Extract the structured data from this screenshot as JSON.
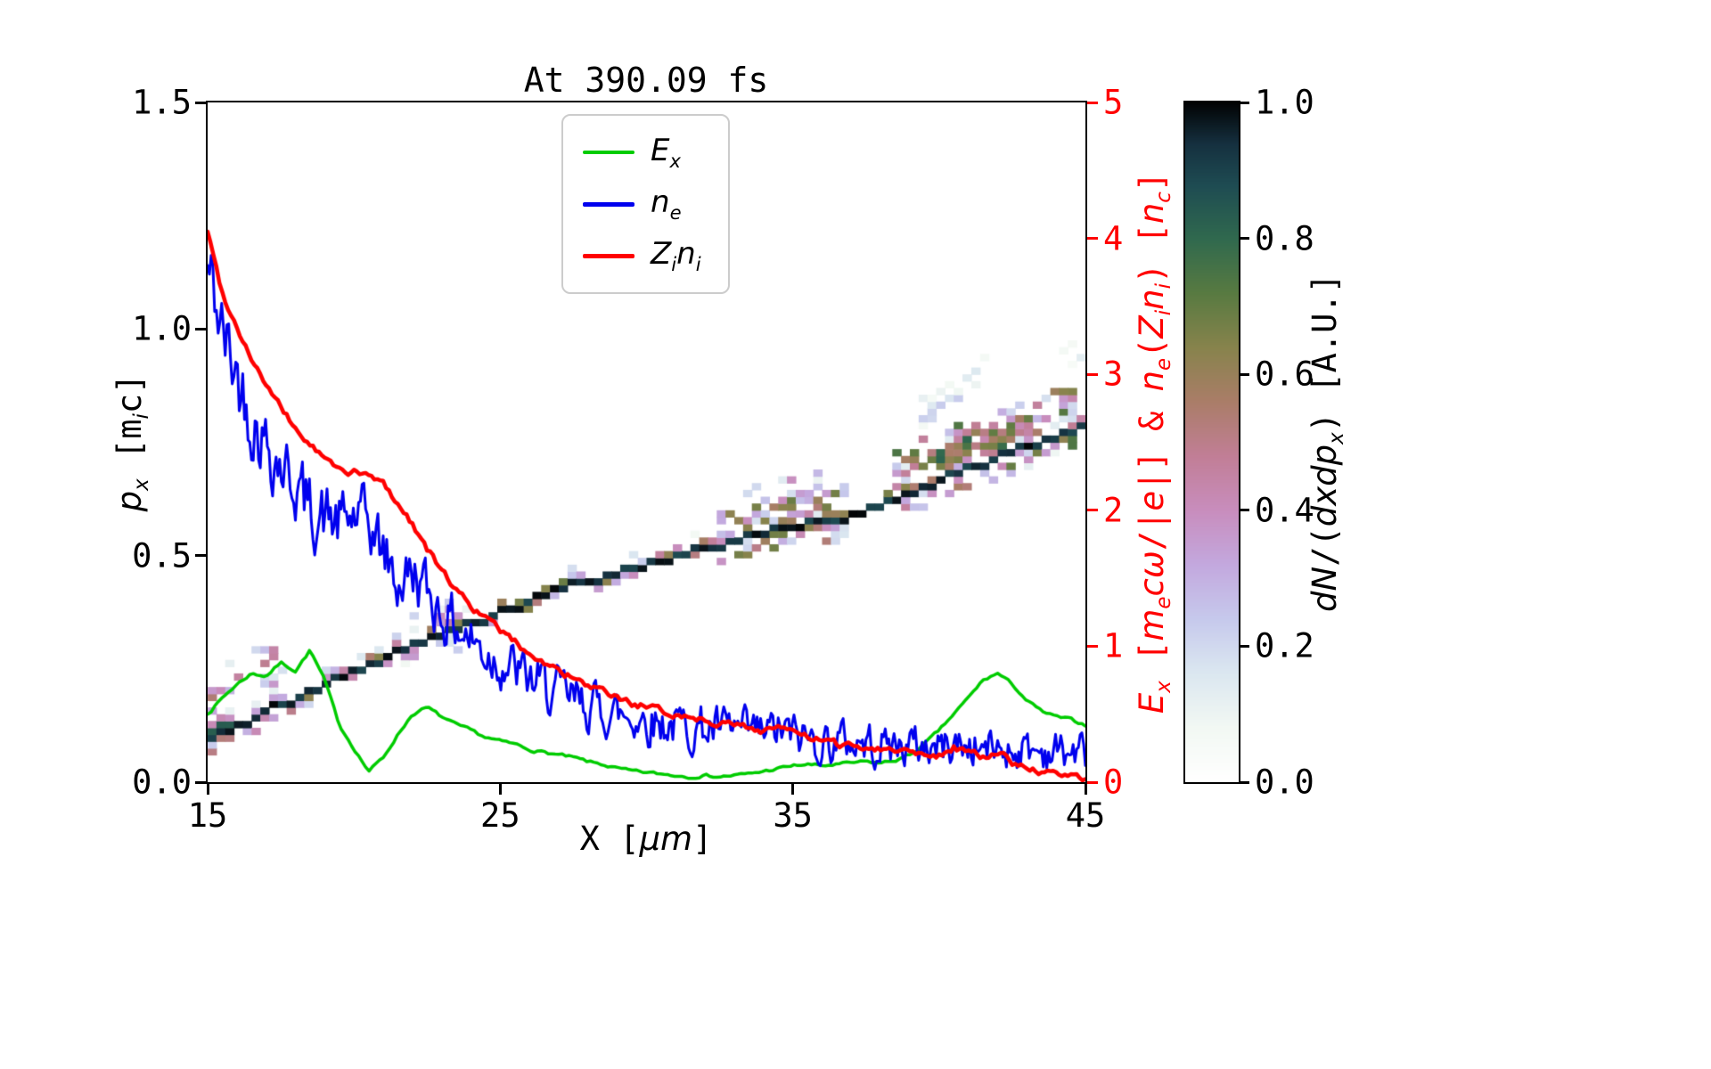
{
  "title": "At 390.09 fs",
  "chart_data": {
    "type": "line+heatmap",
    "title": "At 390.09 fs",
    "grid": false,
    "x_axis": {
      "range": [
        15,
        45
      ],
      "label_segments": [
        {
          "t": "X ["
        },
        {
          "t": "μm",
          "it": 1
        },
        {
          "t": "]"
        }
      ],
      "ticks": [
        {
          "v": 15,
          "label": "15"
        },
        {
          "v": 25,
          "label": "25"
        },
        {
          "v": 35,
          "label": "35"
        },
        {
          "v": 45,
          "label": "45"
        }
      ]
    },
    "y_left": {
      "range": [
        0,
        1.5
      ],
      "label_segments": [
        {
          "t": "p",
          "it": 1
        },
        {
          "t": "x",
          "it": 1,
          "sub": 1
        },
        {
          "t": " [m"
        },
        {
          "t": "i",
          "it": 1,
          "sub": 1
        },
        {
          "t": "c]"
        }
      ],
      "ticks": [
        {
          "v": 0,
          "label": "0.0"
        },
        {
          "v": 0.5,
          "label": "0.5"
        },
        {
          "v": 1.0,
          "label": "1.0"
        },
        {
          "v": 1.5,
          "label": "1.5"
        }
      ]
    },
    "y_right": {
      "range": [
        0,
        5
      ],
      "color": "#ff0000",
      "label_segments": [
        {
          "t": "E",
          "it": 1
        },
        {
          "t": "x",
          "it": 1,
          "sub": 1
        },
        {
          "t": " ["
        },
        {
          "t": "m",
          "it": 1
        },
        {
          "t": "e",
          "it": 1,
          "sub": 1
        },
        {
          "t": "c",
          "it": 1
        },
        {
          "t": "ω",
          "it": 1
        },
        {
          "t": "/|"
        },
        {
          "t": "e",
          "it": 1
        },
        {
          "t": "|] & "
        },
        {
          "t": "n",
          "it": 1
        },
        {
          "t": "e",
          "it": 1,
          "sub": 1
        },
        {
          "t": "("
        },
        {
          "t": "Z",
          "it": 1
        },
        {
          "t": "i",
          "it": 1,
          "sub": 1
        },
        {
          "t": "n",
          "it": 1
        },
        {
          "t": "i",
          "it": 1,
          "sub": 1
        },
        {
          "t": ") ["
        },
        {
          "t": "n",
          "it": 1
        },
        {
          "t": "c",
          "it": 1,
          "sub": 1
        },
        {
          "t": "]"
        }
      ],
      "ticks": [
        {
          "v": 0,
          "label": "0"
        },
        {
          "v": 1,
          "label": "1"
        },
        {
          "v": 2,
          "label": "2"
        },
        {
          "v": 3,
          "label": "3"
        },
        {
          "v": 4,
          "label": "4"
        },
        {
          "v": 5,
          "label": "5"
        }
      ]
    },
    "legend": {
      "position": "upper center",
      "entries": [
        {
          "name": "Ex",
          "color": "#00cc00",
          "lw": 4,
          "label_segments": [
            {
              "t": "E",
              "it": 1
            },
            {
              "t": "x",
              "it": 1,
              "sub": 1
            }
          ]
        },
        {
          "name": "ne",
          "color": "#0000ee",
          "lw": 5,
          "label_segments": [
            {
              "t": "n",
              "it": 1
            },
            {
              "t": "e",
              "it": 1,
              "sub": 1
            }
          ]
        },
        {
          "name": "Zini",
          "color": "#ff0000",
          "lw": 5,
          "label_segments": [
            {
              "t": "Z",
              "it": 1
            },
            {
              "t": "i",
              "it": 1,
              "sub": 1
            },
            {
              "t": "n",
              "it": 1
            },
            {
              "t": "i",
              "it": 1,
              "sub": 1
            }
          ]
        }
      ]
    },
    "series": [
      {
        "name": "Ex",
        "axis": "right",
        "color": "#00cc00",
        "lw": 3.5,
        "x_start": 15,
        "x_step": 0.5,
        "y": [
          0.5,
          0.62,
          0.72,
          0.8,
          0.78,
          0.88,
          0.82,
          0.97,
          0.75,
          0.42,
          0.25,
          0.08,
          0.18,
          0.35,
          0.5,
          0.55,
          0.48,
          0.42,
          0.38,
          0.33,
          0.3,
          0.28,
          0.24,
          0.22,
          0.2,
          0.18,
          0.15,
          0.13,
          0.1,
          0.08,
          0.07,
          0.06,
          0.05,
          0.04,
          0.05,
          0.04,
          0.05,
          0.06,
          0.08,
          0.1,
          0.12,
          0.13,
          0.12,
          0.13,
          0.14,
          0.15,
          0.14,
          0.16,
          0.2,
          0.28,
          0.38,
          0.5,
          0.62,
          0.75,
          0.8,
          0.72,
          0.6,
          0.52,
          0.48,
          0.46,
          0.42
        ],
        "noise": {
          "step": 0.12,
          "ar": 0.5,
          "amp": 0.013,
          "mult": 1.5,
          "seed": 7
        }
      },
      {
        "name": "ne",
        "axis": "right",
        "color": "#0000ee",
        "lw": 3,
        "x_start": 15,
        "x_step": 0.5,
        "y": [
          3.8,
          3.3,
          3.0,
          2.7,
          2.5,
          2.35,
          2.2,
          2.0,
          1.95,
          1.9,
          1.95,
          1.9,
          1.7,
          1.45,
          1.55,
          1.4,
          1.25,
          1.15,
          1.05,
          0.95,
          0.9,
          0.82,
          0.75,
          0.7,
          0.65,
          0.6,
          0.57,
          0.54,
          0.5,
          0.48,
          0.46,
          0.44,
          0.42,
          0.4,
          0.4,
          0.38,
          0.38,
          0.36,
          0.36,
          0.38,
          0.35,
          0.32,
          0.3,
          0.3,
          0.3,
          0.28,
          0.28,
          0.27,
          0.27,
          0.26,
          0.26,
          0.28,
          0.26,
          0.25,
          0.25,
          0.24,
          0.24,
          0.23,
          0.23,
          0.22,
          0.22
        ],
        "noise": {
          "step": 0.06,
          "ar": 0.45,
          "amp_start": 0.3,
          "amp_end": 0.13,
          "decay": 9,
          "mult": 1.7,
          "seed": 42
        }
      },
      {
        "name": "Zini",
        "axis": "right",
        "color": "#ff0000",
        "lw": 4.5,
        "x_start": 15,
        "x_step": 0.5,
        "y": [
          4.05,
          3.6,
          3.35,
          3.12,
          2.92,
          2.75,
          2.6,
          2.48,
          2.38,
          2.3,
          2.28,
          2.25,
          2.2,
          2.05,
          1.9,
          1.72,
          1.55,
          1.42,
          1.3,
          1.2,
          1.12,
          1.03,
          0.95,
          0.88,
          0.82,
          0.76,
          0.7,
          0.66,
          0.62,
          0.58,
          0.55,
          0.52,
          0.5,
          0.48,
          0.46,
          0.44,
          0.42,
          0.4,
          0.38,
          0.42,
          0.36,
          0.33,
          0.3,
          0.28,
          0.27,
          0.26,
          0.25,
          0.24,
          0.23,
          0.22,
          0.2,
          0.26,
          0.22,
          0.18,
          0.22,
          0.15,
          0.1,
          0.07,
          0.05,
          0.04,
          0.03
        ],
        "noise": {
          "step": 0.1,
          "ar": 0.5,
          "amp": 0.03,
          "mult": 1.5,
          "seed": 99
        }
      }
    ],
    "heatmap": {
      "name": "ion phase space dN/(dxdpx)",
      "x_range": [
        15,
        45
      ],
      "p_range": [
        0,
        1.5
      ],
      "grid": {
        "nx": 100,
        "np": 100
      },
      "seed": 1337,
      "band_centerline": {
        "x": [
          15,
          17,
          19,
          21,
          23,
          25,
          27,
          29,
          31,
          33,
          35,
          36.5,
          38,
          40,
          42,
          44,
          45
        ],
        "p": [
          0.1,
          0.155,
          0.215,
          0.27,
          0.325,
          0.375,
          0.425,
          0.465,
          0.5,
          0.535,
          0.565,
          0.578,
          0.615,
          0.665,
          0.715,
          0.762,
          0.785
        ]
      },
      "band_core_intensity": [
        0.88,
        1.0
      ],
      "patches": [
        {
          "x0": 15.0,
          "x1": 17.8,
          "rel": 1,
          "p0": -0.03,
          "p1": 0.13,
          "density": 0.3,
          "i0": 0.1,
          "i1": 0.55
        },
        {
          "x0": 21.8,
          "x1": 23.6,
          "rel": 1,
          "p0": -0.045,
          "p1": 0.05,
          "density": 0.25,
          "i0": 0.08,
          "i1": 0.4
        },
        {
          "x0": 32.5,
          "x1": 36.8,
          "rel": 1,
          "p0": -0.04,
          "p1": 0.05,
          "density": 0.45,
          "i0": 0.15,
          "i1": 0.7
        },
        {
          "x0": 33.2,
          "x1": 36.2,
          "rel": 1,
          "p0": 0.025,
          "p1": 0.09,
          "density": 0.25,
          "i0": 0.08,
          "i1": 0.4
        },
        {
          "x0": 38.3,
          "x1": 44.6,
          "rel": 1,
          "p0": -0.04,
          "p1": 0.085,
          "density": 0.4,
          "i0": 0.12,
          "i1": 0.75
        },
        {
          "x0": 40.0,
          "x1": 43.2,
          "rel": 1,
          "p0": 0.03,
          "p1": 0.055,
          "density": 0.7,
          "i0": 0.35,
          "i1": 0.85
        },
        {
          "x0": 39.3,
          "x1": 41.6,
          "rel": 0,
          "diag": 1,
          "p0": 0.8,
          "p1": 0.91,
          "density": 0.35,
          "i0": 0.06,
          "i1": 0.25
        },
        {
          "x0": 44.0,
          "x1": 45.0,
          "rel": 0,
          "p0": 0.9,
          "p1": 0.96,
          "density": 0.25,
          "i0": 0.05,
          "i1": 0.16
        }
      ]
    },
    "colorbar": {
      "range": [
        0,
        1
      ],
      "label_segments": [
        {
          "t": "d",
          "it": 1
        },
        {
          "t": "N",
          "it": 1
        },
        {
          "t": "/("
        },
        {
          "t": "d",
          "it": 1
        },
        {
          "t": "x",
          "it": 1
        },
        {
          "t": "d",
          "it": 1
        },
        {
          "t": "p",
          "it": 1
        },
        {
          "t": "x",
          "it": 1,
          "sub": 1
        },
        {
          "t": ") [A.U.]"
        }
      ],
      "ticks": [
        {
          "v": 0,
          "label": "0.0"
        },
        {
          "v": 0.2,
          "label": "0.2"
        },
        {
          "v": 0.4,
          "label": "0.4"
        },
        {
          "v": 0.6,
          "label": "0.6"
        },
        {
          "v": 0.8,
          "label": "0.8"
        },
        {
          "v": 1.0,
          "label": "1.0"
        }
      ],
      "colormap_stops": [
        {
          "v": 0.0,
          "c": "#ffffff"
        },
        {
          "v": 0.08,
          "c": "#f2f8f3"
        },
        {
          "v": 0.16,
          "c": "#dbe7f0"
        },
        {
          "v": 0.24,
          "c": "#c6c9ec"
        },
        {
          "v": 0.32,
          "c": "#c3a8de"
        },
        {
          "v": 0.4,
          "c": "#c88dbd"
        },
        {
          "v": 0.48,
          "c": "#c17e96"
        },
        {
          "v": 0.56,
          "c": "#aa7d68"
        },
        {
          "v": 0.64,
          "c": "#87834c"
        },
        {
          "v": 0.72,
          "c": "#587a41"
        },
        {
          "v": 0.8,
          "c": "#30694e"
        },
        {
          "v": 0.88,
          "c": "#1e4b52"
        },
        {
          "v": 0.94,
          "c": "#15303f"
        },
        {
          "v": 1.0,
          "c": "#020304"
        }
      ]
    }
  }
}
